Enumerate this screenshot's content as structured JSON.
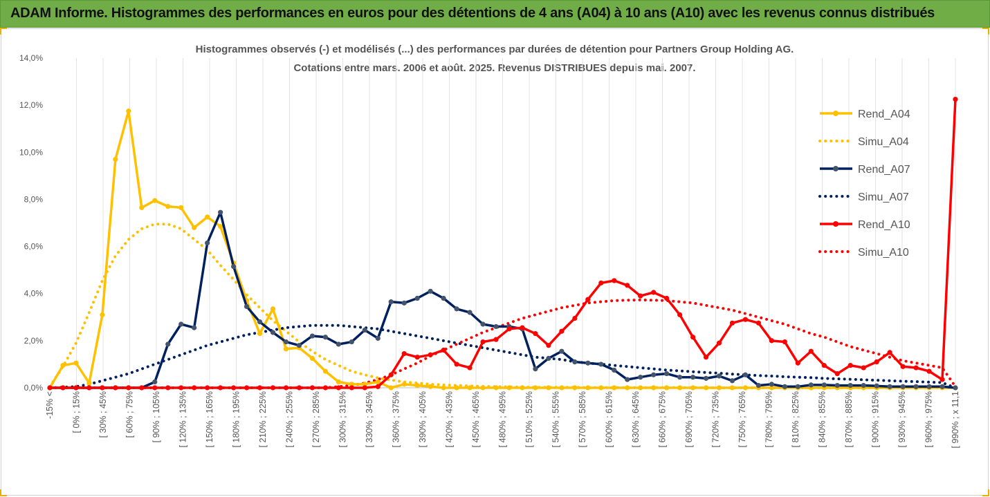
{
  "header": {
    "title": "ADAM Informe. Histogrammes des performances en euros pour des détentions de 4 ans (A04) à 10 ans (A10) avec les revenus connus distribués",
    "background": "#70ad47"
  },
  "chart_data": {
    "type": "line",
    "title_line1": "Histogrammes observés (-) et modélisés (...) des performances par durées de détention pour Partners Group Holding AG.",
    "title_line2": "Cotations entre mars. 2006 et août. 2025. Revenus DISTRIBUES depuis mai. 2007.",
    "xlabel": "",
    "ylabel": "",
    "ylim": [
      0,
      14
    ],
    "y_ticks": [
      "0,0%",
      "2,0%",
      "4,0%",
      "6,0%",
      "8,0%",
      "10,0%",
      "12,0%",
      "14,0%"
    ],
    "grid": "vertical",
    "legend_position": "right",
    "x_labels": [
      "-15% <",
      "[ 0% ; 15% ",
      "[ 30% ; 45% ",
      "[ 60% ; 75% ",
      "[ 90% ; 105% ",
      "[ 120% ; 135% ",
      "[ 150% ; 165% ",
      "[ 180% ; 195% ",
      "[ 210% ; 225% ",
      "[ 240% ; 255% ",
      "[ 270% ; 285% ",
      "[ 300% ; 315% ",
      "[ 330% ; 345% ",
      "[ 360% ; 375% ",
      "[ 390% ; 405% ",
      "[ 420% ; 435% ",
      "[ 450% ; 465% ",
      "[ 480% ; 495% ",
      "[ 510% ; 525% ",
      "[ 540% ; 555% ",
      "[ 570% ; 585% ",
      "[ 600% ; 615% ",
      "[ 630% ; 645% ",
      "[ 660% ; 675% ",
      "[ 690% ; 705% ",
      "[ 720% ; 735% ",
      "[ 750% ; 765% ",
      "[ 780% ; 795% ",
      "[ 810% ; 825% ",
      "[ 840% ; 855% ",
      "[ 870% ; 885% ",
      "[ 900% ; 915% ",
      "[ 930% ; 945% ",
      "[ 960% ; 975% ",
      "[ 990% ; x 11,1"
    ],
    "series": [
      {
        "name": "Rend_A04",
        "color": "#ffc000",
        "style": "solid",
        "values": [
          0.0,
          0.95,
          1.05,
          0.2,
          3.1,
          9.7,
          11.75,
          7.65,
          7.95,
          7.7,
          7.65,
          6.8,
          7.25,
          6.85,
          5.3,
          3.7,
          2.3,
          3.35,
          1.65,
          1.7,
          1.25,
          0.7,
          0.25,
          0.15,
          0.15,
          0.25,
          0.0,
          0.15,
          0.1,
          0.05,
          0.0,
          0.0,
          0.0,
          0.0,
          0.0,
          0.0,
          0.0,
          0.0,
          0.0,
          0.0,
          0.0,
          0.0,
          0.0,
          0.0,
          0.0,
          0.0,
          0.0,
          0.0,
          0.0,
          0.0,
          0.0,
          0.0,
          0.0,
          0.0,
          0.0,
          0.0,
          0.0,
          0.0,
          0.0,
          0.0,
          0.0,
          0.0,
          0.0,
          0.0,
          0.0,
          0.0,
          0.0,
          0.0,
          0.0,
          0.0
        ]
      },
      {
        "name": "Simu_A04",
        "color": "#ffc000",
        "style": "dotted",
        "values": [
          0.05,
          0.9,
          1.9,
          3.2,
          4.55,
          5.6,
          6.3,
          6.75,
          6.95,
          6.95,
          6.75,
          6.3,
          5.85,
          5.2,
          4.6,
          3.95,
          3.4,
          2.85,
          2.4,
          1.95,
          1.55,
          1.2,
          0.95,
          0.7,
          0.55,
          0.42,
          0.33,
          0.25,
          0.2,
          0.15,
          0.12,
          0.1,
          0.08,
          0.06,
          0.05,
          0.04,
          0.03,
          0.02,
          0.02,
          0.02,
          0.02,
          0.01,
          0.01,
          0.01,
          0.01,
          0.01,
          0.01,
          0.01,
          0.01,
          0.01,
          0.0,
          0.0,
          0.0,
          0.0,
          0.0,
          0.0,
          0.0,
          0.0,
          0.0,
          0.0,
          0.0,
          0.0,
          0.0,
          0.0,
          0.0,
          0.0,
          0.0,
          0.0,
          0.0,
          0.0
        ]
      },
      {
        "name": "Rend_A07",
        "color": "#002060",
        "style": "solid",
        "values": [
          0.0,
          0.0,
          0.0,
          0.0,
          0.0,
          0.0,
          0.0,
          0.0,
          0.25,
          1.85,
          2.7,
          2.55,
          6.15,
          7.45,
          5.15,
          3.45,
          2.8,
          2.35,
          1.95,
          1.8,
          2.2,
          2.15,
          1.85,
          1.95,
          2.45,
          2.1,
          3.65,
          3.6,
          3.8,
          4.1,
          3.8,
          3.35,
          3.2,
          2.7,
          2.6,
          2.6,
          2.5,
          0.8,
          1.25,
          1.55,
          1.1,
          1.05,
          1.0,
          0.75,
          0.35,
          0.45,
          0.55,
          0.6,
          0.45,
          0.45,
          0.4,
          0.5,
          0.3,
          0.55,
          0.1,
          0.15,
          0.05,
          0.05,
          0.12,
          0.12,
          0.1,
          0.1,
          0.1,
          0.08,
          0.05,
          0.05,
          0.05,
          0.05,
          0.05,
          0.0
        ]
      },
      {
        "name": "Simu_A07",
        "color": "#002060",
        "style": "dotted",
        "values": [
          0.0,
          0.02,
          0.05,
          0.15,
          0.3,
          0.45,
          0.6,
          0.8,
          1.0,
          1.2,
          1.4,
          1.6,
          1.8,
          1.95,
          2.1,
          2.25,
          2.35,
          2.45,
          2.55,
          2.6,
          2.65,
          2.65,
          2.65,
          2.6,
          2.55,
          2.5,
          2.4,
          2.3,
          2.2,
          2.1,
          2.0,
          1.9,
          1.8,
          1.7,
          1.6,
          1.5,
          1.4,
          1.3,
          1.25,
          1.2,
          1.1,
          1.05,
          1.0,
          0.95,
          0.9,
          0.85,
          0.8,
          0.75,
          0.72,
          0.68,
          0.65,
          0.62,
          0.58,
          0.55,
          0.52,
          0.5,
          0.47,
          0.45,
          0.43,
          0.4,
          0.38,
          0.36,
          0.34,
          0.32,
          0.3,
          0.28,
          0.26,
          0.24,
          0.22,
          0.0
        ]
      },
      {
        "name": "Rend_A10",
        "color": "#ff0000",
        "style": "solid",
        "values": [
          0.0,
          0.0,
          0.0,
          0.0,
          0.0,
          0.0,
          0.0,
          0.0,
          0.0,
          0.0,
          0.0,
          0.0,
          0.0,
          0.0,
          0.0,
          0.0,
          0.0,
          0.0,
          0.0,
          0.0,
          0.0,
          0.0,
          0.0,
          0.0,
          0.0,
          0.05,
          0.55,
          1.45,
          1.3,
          1.4,
          1.6,
          1.0,
          0.85,
          1.95,
          2.05,
          2.5,
          2.55,
          2.3,
          1.8,
          2.4,
          2.95,
          3.75,
          4.45,
          4.55,
          4.35,
          3.9,
          4.05,
          3.8,
          3.1,
          2.15,
          1.3,
          1.9,
          2.75,
          2.9,
          2.75,
          2.0,
          1.95,
          1.05,
          1.55,
          0.95,
          0.6,
          0.95,
          0.85,
          1.1,
          1.5,
          0.9,
          0.85,
          0.7,
          0.35,
          12.25
        ]
      },
      {
        "name": "Simu_A10",
        "color": "#ff0000",
        "style": "dotted",
        "values": [
          0.0,
          0.0,
          0.0,
          0.0,
          0.0,
          0.0,
          0.0,
          0.0,
          0.0,
          0.0,
          0.0,
          0.0,
          0.0,
          0.0,
          0.0,
          0.0,
          0.0,
          0.0,
          0.0,
          0.0,
          0.0,
          0.0,
          0.05,
          0.1,
          0.2,
          0.35,
          0.55,
          0.8,
          1.05,
          1.35,
          1.6,
          1.85,
          2.1,
          2.35,
          2.55,
          2.75,
          2.95,
          3.1,
          3.25,
          3.4,
          3.5,
          3.6,
          3.65,
          3.7,
          3.72,
          3.73,
          3.72,
          3.7,
          3.65,
          3.6,
          3.5,
          3.4,
          3.3,
          3.15,
          3.0,
          2.85,
          2.7,
          2.5,
          2.3,
          2.15,
          1.95,
          1.75,
          1.6,
          1.45,
          1.3,
          1.15,
          1.05,
          0.95,
          0.85,
          0.05
        ]
      }
    ]
  }
}
